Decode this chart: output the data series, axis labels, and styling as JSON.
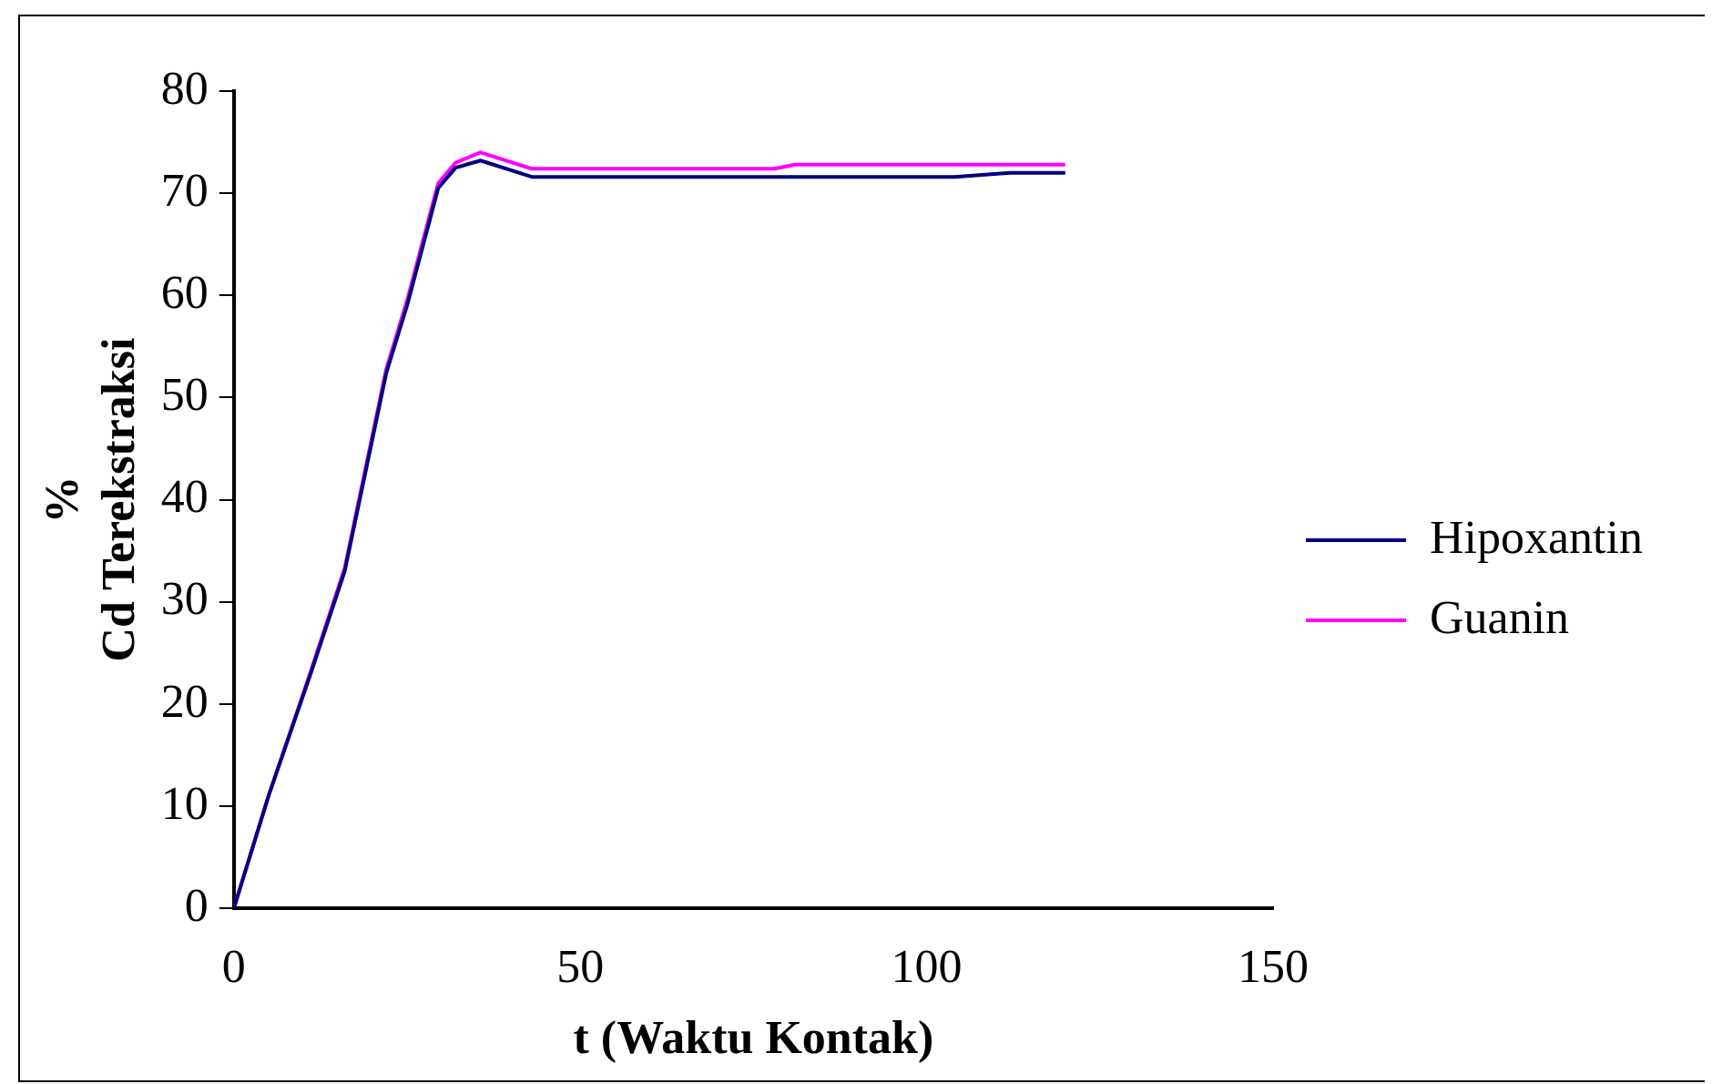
{
  "chart_data": {
    "type": "line",
    "xlabel": "t (Waktu Kontak)",
    "ylabel": "%\nCd Terekstraksi",
    "xlim": [
      0,
      150
    ],
    "xticks": [
      0,
      50,
      100,
      150
    ],
    "ylim": [
      0,
      80
    ],
    "yticks": [
      0,
      10,
      20,
      30,
      40,
      50,
      60,
      70,
      80
    ],
    "grid": false,
    "legend": "right",
    "marker": "none",
    "line_style": "solid",
    "series": [
      {
        "name": "Hipoxantin",
        "color": "#000080",
        "x": [
          0,
          5,
          11,
          16,
          22,
          25,
          29.5,
          32,
          35.6,
          43,
          78,
          104,
          112,
          120
        ],
        "values": [
          0,
          11,
          22.8,
          33,
          52.4,
          59,
          70.5,
          72.5,
          73.2,
          71.6,
          71.6,
          71.6,
          72,
          72
        ]
      },
      {
        "name": "Guanin",
        "color": "#ff00ff",
        "x": [
          0,
          5,
          11,
          16,
          22,
          25,
          29.5,
          32,
          35.6,
          43,
          78,
          81,
          112,
          120
        ],
        "values": [
          0,
          11,
          23,
          33.3,
          52.8,
          59.5,
          71,
          73,
          74,
          72.4,
          72.4,
          72.8,
          72.8,
          72.8
        ]
      }
    ]
  }
}
